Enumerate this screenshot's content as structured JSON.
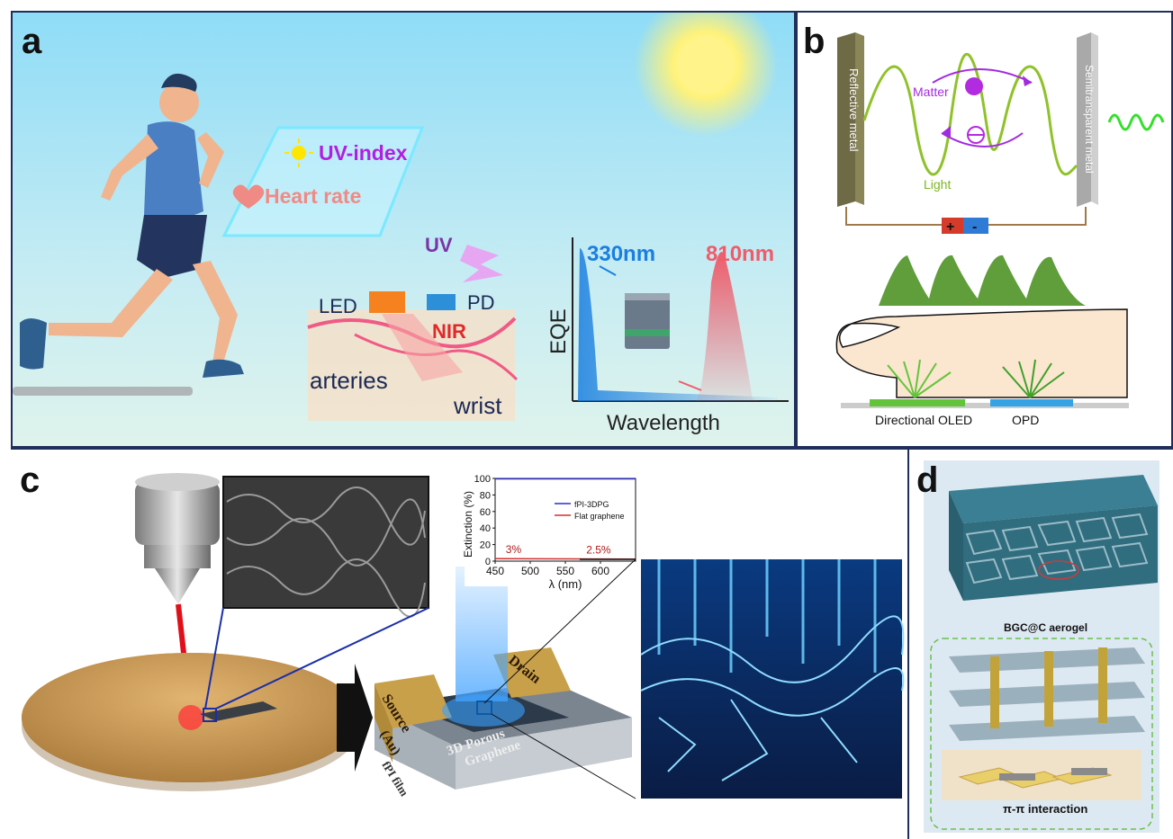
{
  "panels": {
    "a": {
      "label": "a",
      "hud": {
        "uv_index": "UV-index",
        "heart_rate": "Heart rate"
      },
      "sensor": {
        "uv": "UV",
        "led": "LED",
        "pd": "PD",
        "nir": "NIR",
        "arteries": "arteries",
        "wrist": "wrist"
      },
      "plot": {
        "ylabel": "EQE",
        "xlabel": "Wavelength",
        "peak_uv": "330nm",
        "peak_nir": "810nm"
      },
      "colors": {
        "sky_top": "#8fdcf7",
        "sky_bottom": "#d7f1ee",
        "uv_peak": "#1a7fe0",
        "nir_peak": "#ef5c6a",
        "uv_text": "#b21fe0",
        "hr_text": "#f08a84"
      }
    },
    "b": {
      "label": "b",
      "labels": {
        "reflective": "Reflective metal",
        "semitransparent": "Semitransparent metal",
        "matter": "Matter",
        "light": "Light",
        "plus": "+",
        "minus": "-",
        "oled": "Directional OLED",
        "opd": "OPD"
      },
      "colors": {
        "wave": "#7cb51e",
        "matter": "#a22be0",
        "finger": "#fbe6d0",
        "oled": "#63c43c",
        "opd": "#33a3e6"
      }
    },
    "c": {
      "label": "c",
      "device": {
        "source": "Source",
        "source_au": "(Au)",
        "drain": "Drain",
        "porous_1": "3D Porous",
        "porous_2": "Graphene",
        "film": "fPI film"
      },
      "colors": {
        "laser": "#e0101a",
        "wafer": "#c99a55",
        "electrode": "#c9a04a",
        "glow": "#3aa0ff"
      }
    },
    "d": {
      "label": "d",
      "labels": {
        "aerogel": "BGC@C aerogel",
        "interaction": "π-π interaction"
      },
      "colors": {
        "lattice": "#2f6d7f",
        "background": "#dde9f2"
      }
    }
  },
  "chart_data": {
    "type": "line",
    "title": "",
    "xlabel": "λ (nm)",
    "ylabel": "Extinction (%)",
    "xlim": [
      450,
      650
    ],
    "ylim": [
      0,
      100
    ],
    "xticks": [
      450,
      500,
      550,
      600
    ],
    "yticks": [
      0,
      20,
      40,
      60,
      80,
      100
    ],
    "legend_position": "top-right",
    "series": [
      {
        "name": "fPI-3DPG",
        "color": "#2e2ec8",
        "x": [
          450,
          650
        ],
        "y": [
          99.5,
          99.5
        ]
      },
      {
        "name": "Flat graphene",
        "color": "#d23030",
        "x": [
          450,
          650
        ],
        "y": [
          3,
          2.5
        ]
      }
    ],
    "annotations": [
      {
        "text": "3%",
        "x": 460,
        "y": 3
      },
      {
        "text": "2.5%",
        "x": 620,
        "y": 2.5
      }
    ]
  }
}
